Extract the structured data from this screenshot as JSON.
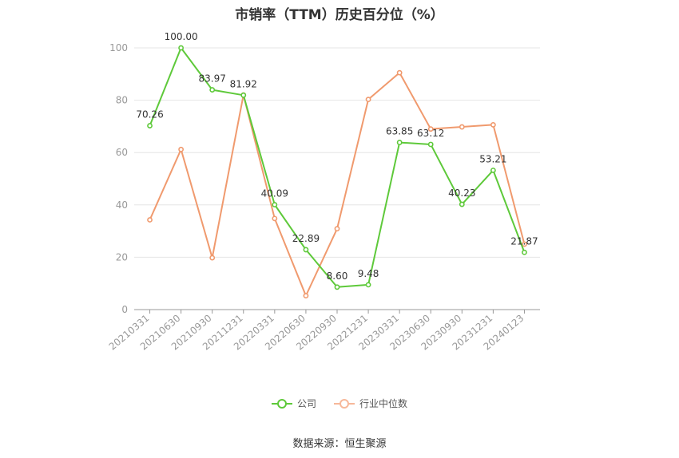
{
  "chart_data": {
    "type": "line",
    "title": "市销率（TTM）历史百分位（%）",
    "categories": [
      "20210331",
      "20210630",
      "20210930",
      "20211231",
      "20220331",
      "20220630",
      "20220930",
      "20221231",
      "20230331",
      "20230630",
      "20230930",
      "20231231",
      "20240123"
    ],
    "ylim": [
      0,
      100
    ],
    "yticks": [
      0,
      20,
      40,
      60,
      80,
      100
    ],
    "grid": true,
    "legend_position": "bottom",
    "series": [
      {
        "name": "公司",
        "color": "#5ec93a",
        "values": [
          70.26,
          100.0,
          83.97,
          81.92,
          40.09,
          22.89,
          8.6,
          9.48,
          63.85,
          63.12,
          40.23,
          53.21,
          21.87
        ],
        "labels": [
          "70.26",
          "100.00",
          "83.97",
          "81.92",
          "40.09",
          "22.89",
          "8.60",
          "9.48",
          "63.85",
          "63.12",
          "40.23",
          "53.21",
          "21.87"
        ]
      },
      {
        "name": "行业中位数",
        "color": "#f09a6e",
        "values": [
          34.3,
          61.2,
          19.8,
          82.0,
          34.8,
          5.3,
          30.9,
          80.3,
          90.5,
          69.0,
          69.8,
          70.6,
          25.0
        ]
      }
    ]
  },
  "source": "数据来源：恒生聚源"
}
